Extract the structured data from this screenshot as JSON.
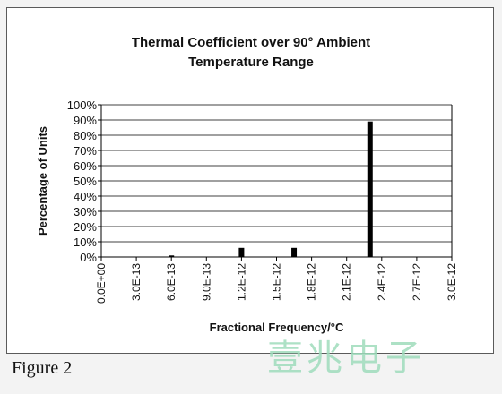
{
  "chart_data": {
    "type": "bar",
    "title_lines": [
      "Thermal Coefficient over 90° Ambient",
      "Temperature Range"
    ],
    "xlabel": "Fractional Frequency/°C",
    "ylabel": "Percentage of Units",
    "x_ticks": [
      "0.0E+00",
      "3.0E-13",
      "6.0E-13",
      "9.0E-13",
      "1.2E-12",
      "1.5E-12",
      "1.8E-12",
      "2.1E-12",
      "2.4E-12",
      "2.7E-12",
      "3.0E-12"
    ],
    "y_ticks": [
      "0%",
      "10%",
      "20%",
      "30%",
      "40%",
      "50%",
      "60%",
      "70%",
      "80%",
      "90%",
      "100%"
    ],
    "ylim": [
      0,
      100
    ],
    "xlim": [
      0,
      3e-12
    ],
    "grid": "horizontal",
    "legend": false,
    "bar_color": "#000000",
    "points": [
      {
        "x": 6e-13,
        "y": 1
      },
      {
        "x": 1.2e-12,
        "y": 6
      },
      {
        "x": 1.65e-12,
        "y": 6
      },
      {
        "x": 2.3e-12,
        "y": 89
      }
    ]
  },
  "figure_caption": "Figure 2",
  "watermark_text": "壹兆电子",
  "colors": {
    "grid": "#000000",
    "background": "#ffffff",
    "watermark": "#9fdcbc"
  }
}
